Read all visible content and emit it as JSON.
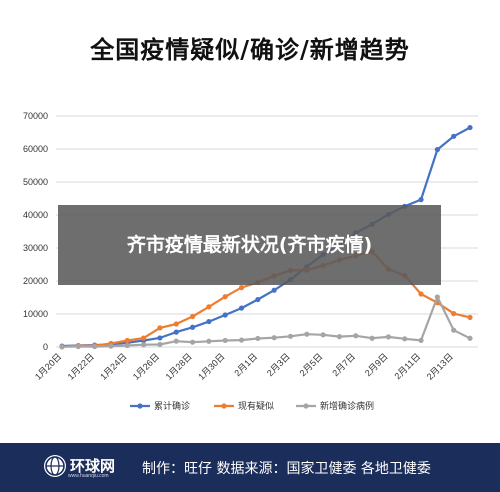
{
  "chart_data": {
    "type": "line",
    "title": "全国疫情疑似/确诊/新增趋势",
    "xlabel": "",
    "ylabel": "",
    "ylim": [
      0,
      70000
    ],
    "yticks": [
      0,
      10000,
      20000,
      30000,
      40000,
      50000,
      60000,
      70000
    ],
    "x": [
      "1月20日",
      "1月21日",
      "1月22日",
      "1月23日",
      "1月24日",
      "1月25日",
      "1月26日",
      "1月27日",
      "1月28日",
      "1月29日",
      "1月30日",
      "1月31日",
      "2月1日",
      "2月2日",
      "2月3日",
      "2月4日",
      "2月5日",
      "2月6日",
      "2月7日",
      "2月8日",
      "2月9日",
      "2月10日",
      "2月11日",
      "2月12日",
      "2月13日",
      "2月14日"
    ],
    "xtick_labels": [
      "1月20日",
      "1月22日",
      "1月24日",
      "1月26日",
      "1月28日",
      "1月30日",
      "2月1日",
      "2月3日",
      "2月5日",
      "2月7日",
      "2月9日",
      "2月11日",
      "2月13日"
    ],
    "grid": true,
    "legend_position": "bottom",
    "series": [
      {
        "name": "累计确诊",
        "color": "#4472c4",
        "values": [
          291,
          440,
          571,
          830,
          1287,
          1975,
          2744,
          4515,
          5974,
          7711,
          9692,
          11791,
          14380,
          17205,
          20438,
          24324,
          28018,
          31161,
          34546,
          37198,
          40171,
          42638,
          44653,
          59804,
          63851,
          66492
        ]
      },
      {
        "name": "现有疑似",
        "color": "#ed7d31",
        "values": [
          54,
          393,
          393,
          1072,
          1965,
          2684,
          5794,
          6973,
          9239,
          12167,
          15238,
          17988,
          19544,
          21558,
          23214,
          23260,
          24702,
          26359,
          27657,
          28942,
          23589,
          21675,
          16067,
          13435,
          10109,
          8969
        ]
      },
      {
        "name": "新增确诊病例",
        "color": "#a5a5a5",
        "values": [
          77,
          149,
          131,
          259,
          444,
          688,
          769,
          1771,
          1459,
          1737,
          1982,
          2102,
          2590,
          2829,
          3235,
          3887,
          3694,
          3143,
          3399,
          2656,
          3062,
          2478,
          2015,
          15152,
          5090,
          2641
        ]
      }
    ]
  },
  "overlay": {
    "text": "齐市疫情最新状况(齐市疾情)"
  },
  "footer": {
    "logo_text": "环球网",
    "logo_sub": "www.huanqiu.com",
    "credit": "制作：旺仔    数据来源：国家卫健委 各地卫健委"
  }
}
